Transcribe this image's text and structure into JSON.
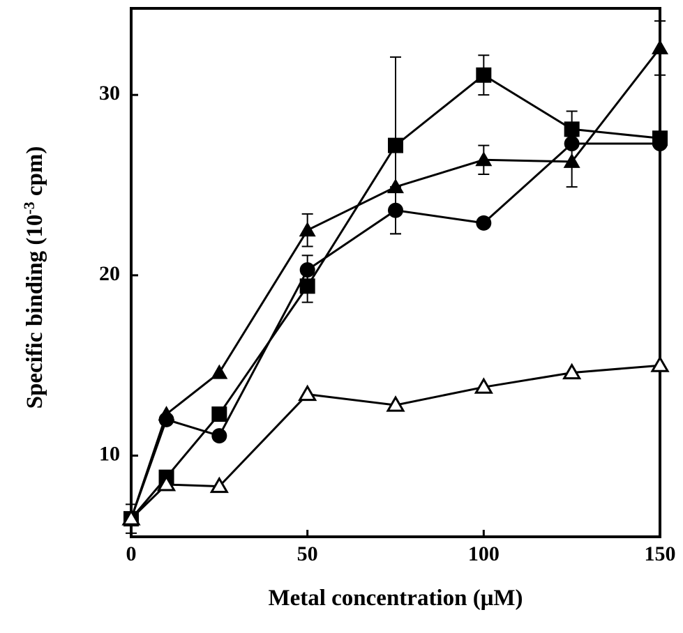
{
  "chart_data": {
    "type": "line",
    "xlabel": "Metal concentration (μM)",
    "ylabel_main": "Specific binding (10",
    "ylabel_sup": "-3",
    "ylabel_tail": " cpm)",
    "xlim": [
      0,
      150
    ],
    "ylim": [
      5.5,
      34.8
    ],
    "x_ticks": [
      0,
      50,
      100,
      150
    ],
    "y_ticks": [
      10,
      20,
      30
    ],
    "grid": false,
    "legend": "none",
    "series": [
      {
        "marker": "filled-square",
        "x": [
          0,
          10,
          25,
          50,
          75,
          100,
          125,
          150
        ],
        "y": [
          6.5,
          8.8,
          12.3,
          19.4,
          27.2,
          31.1,
          28.1,
          27.6
        ],
        "err": [
          0.8,
          0,
          0,
          0.9,
          4.9,
          1.1,
          1.0,
          0
        ]
      },
      {
        "marker": "filled-triangle",
        "x": [
          0,
          10,
          25,
          50,
          75,
          100,
          125,
          150
        ],
        "y": [
          6.5,
          12.3,
          14.6,
          22.5,
          24.9,
          26.4,
          26.3,
          32.6
        ],
        "err": [
          0,
          0,
          0,
          0.9,
          0,
          0.8,
          1.4,
          1.5
        ]
      },
      {
        "marker": "filled-circle",
        "x": [
          0,
          10,
          25,
          50,
          75,
          100,
          125,
          150
        ],
        "y": [
          6.5,
          12.0,
          11.1,
          20.3,
          23.6,
          22.9,
          27.3,
          27.3
        ],
        "err": [
          0,
          0,
          0,
          0.8,
          1.3,
          0,
          0,
          0
        ]
      },
      {
        "marker": "open-triangle",
        "x": [
          0,
          10,
          25,
          50,
          75,
          100,
          125,
          150
        ],
        "y": [
          6.5,
          8.4,
          8.3,
          13.4,
          12.8,
          13.8,
          14.6,
          15.0
        ],
        "err": [
          0,
          0,
          0,
          0,
          0,
          0,
          0,
          0
        ]
      }
    ]
  }
}
